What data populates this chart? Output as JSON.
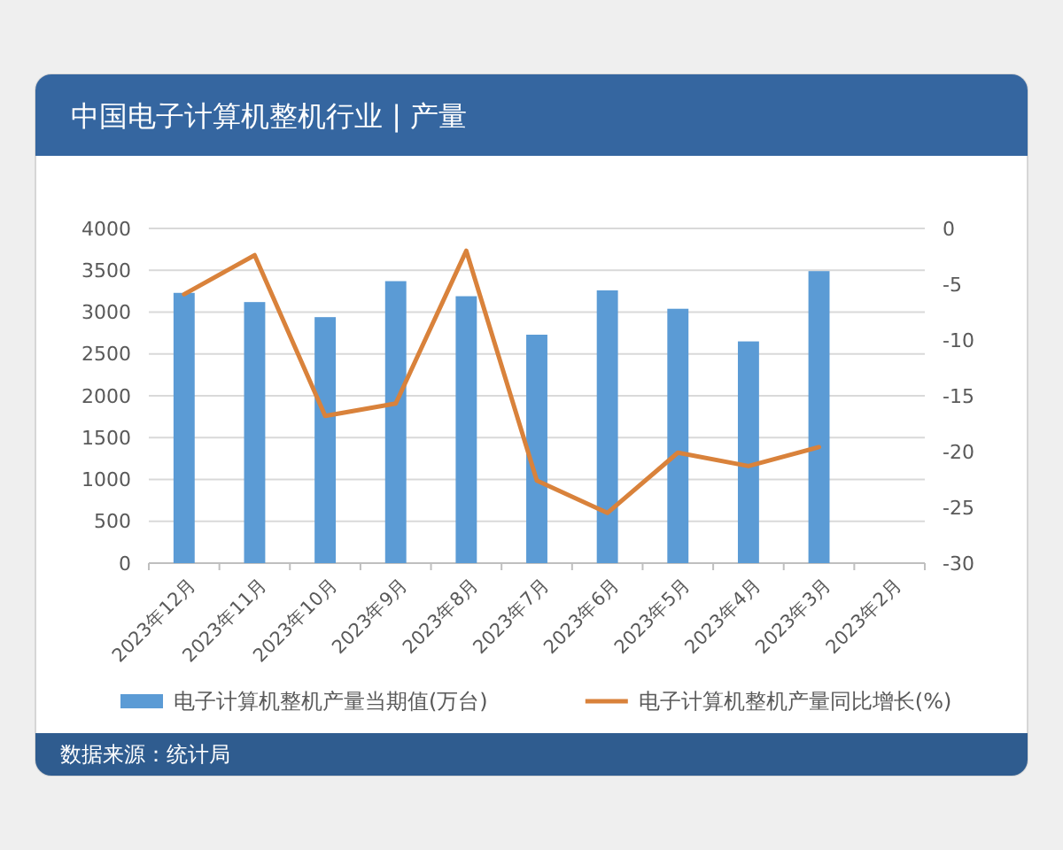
{
  "chart_data": {
    "type": "bar",
    "title": "中国电子计算机整机行业 | 产量",
    "categories": [
      "2023年12月",
      "2023年11月",
      "2023年10月",
      "2023年9月",
      "2023年8月",
      "2023年7月",
      "2023年6月",
      "2023年5月",
      "2023年4月",
      "2023年3月",
      "2023年2月"
    ],
    "series": [
      {
        "name": "电子计算机整机产量当期值(万台)",
        "color": "#5b9bd5",
        "values": [
          3230,
          3120,
          2940,
          3370,
          3190,
          2730,
          3260,
          3040,
          2650,
          3490,
          null
        ]
      },
      {
        "name": "电子计算机整机产量同比增长(%)",
        "type": "line",
        "axis": "y2",
        "color": "#d9823b",
        "values": [
          -5.9,
          -2.4,
          -16.8,
          -15.7,
          -2.0,
          -22.6,
          -25.5,
          -20.1,
          -21.3,
          -19.6,
          null
        ]
      }
    ],
    "ylim": [
      0,
      4000
    ],
    "yticks": [
      0,
      500,
      1000,
      1500,
      2000,
      2500,
      3000,
      3500,
      4000
    ],
    "y2lim": [
      -30,
      0
    ],
    "y2ticks": [
      -30,
      -25,
      -20,
      -15,
      -10,
      -5,
      0
    ],
    "grid": "y",
    "legend": "bottom",
    "annotations": [
      "数据来源：统计局"
    ]
  }
}
